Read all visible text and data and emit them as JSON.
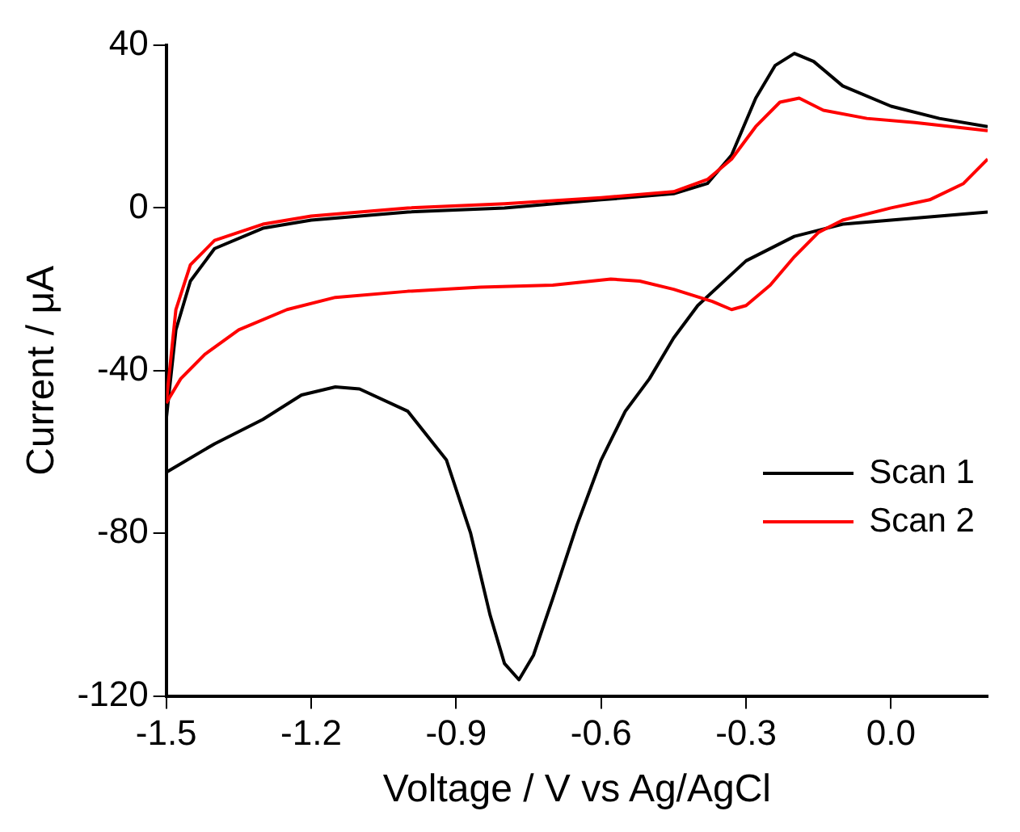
{
  "chart_data": {
    "type": "line",
    "xlabel": "Voltage / V vs Ag/AgCl",
    "ylabel": "Current / μA",
    "xlim": [
      -1.5,
      0.2
    ],
    "xticks": [
      {
        "value": -1.5,
        "label": "-1.5"
      },
      {
        "value": -1.2,
        "label": "-1.2"
      },
      {
        "value": -0.9,
        "label": "-0.9"
      },
      {
        "value": -0.6,
        "label": "-0.6"
      },
      {
        "value": -0.3,
        "label": "-0.3"
      },
      {
        "value": 0,
        "label": "0.0"
      }
    ],
    "ylim": [
      -120,
      40
    ],
    "yticks": [
      -120,
      -80,
      -40,
      0,
      40
    ],
    "grid": false,
    "legend": "right",
    "marker": "none",
    "line_style": "solid",
    "series": [
      {
        "name": "Scan 1",
        "color": "#000000",
        "x": [
          -1.5,
          -1.48,
          -1.45,
          -1.4,
          -1.3,
          -1.2,
          -1.0,
          -0.8,
          -0.6,
          -0.45,
          -0.38,
          -0.33,
          -0.28,
          -0.24,
          -0.2,
          -0.16,
          -0.1,
          0,
          0.1,
          0.2
        ],
        "values": [
          -52,
          -30,
          -18,
          -10,
          -5,
          -3,
          -1,
          0,
          2,
          3.5,
          6,
          13,
          27,
          35,
          38,
          36,
          30,
          25,
          22,
          20
        ]
      },
      {
        "color": "#000000",
        "x": [
          0.2,
          0.1,
          0,
          -0.1,
          -0.2,
          -0.3,
          -0.4,
          -0.45,
          -0.5,
          -0.55,
          -0.6,
          -0.65,
          -0.7,
          -0.74,
          -0.77,
          -0.8,
          -0.83,
          -0.87,
          -0.92,
          -1.0,
          -1.1,
          -1.15,
          -1.22,
          -1.3,
          -1.4,
          -1.5
        ],
        "values": [
          -1,
          -2,
          -3,
          -4,
          -7,
          -13,
          -24,
          -32,
          -42,
          -50,
          -62,
          -78,
          -96,
          -110,
          -116,
          -112,
          -100,
          -80,
          -62,
          -50,
          -44.5,
          -44,
          -46,
          -52,
          -58,
          -65
        ]
      },
      {
        "name": "Scan 2",
        "color": "#ff0000",
        "x": [
          -1.5,
          -1.48,
          -1.45,
          -1.4,
          -1.3,
          -1.2,
          -1.0,
          -0.8,
          -0.6,
          -0.45,
          -0.38,
          -0.33,
          -0.28,
          -0.23,
          -0.19,
          -0.14,
          -0.05,
          0.05,
          0.2
        ],
        "values": [
          -48,
          -25,
          -14,
          -8,
          -4,
          -2,
          0,
          1,
          2.5,
          4,
          7,
          12,
          20,
          26,
          27,
          24,
          22,
          21,
          19
        ]
      },
      {
        "color": "#ff0000",
        "x": [
          0.2,
          0.15,
          0.08,
          0,
          -0.1,
          -0.15,
          -0.2,
          -0.25,
          -0.3,
          -0.33,
          -0.37,
          -0.45,
          -0.52,
          -0.58,
          -0.7,
          -0.85,
          -1.0,
          -1.15,
          -1.25,
          -1.35,
          -1.42,
          -1.47,
          -1.5
        ],
        "values": [
          12,
          6,
          2,
          0,
          -3,
          -6,
          -12,
          -19,
          -24,
          -25,
          -23,
          -20,
          -18,
          -17.5,
          -19,
          -19.5,
          -20.5,
          -22,
          -25,
          -30,
          -36,
          -42,
          -48
        ]
      }
    ]
  }
}
